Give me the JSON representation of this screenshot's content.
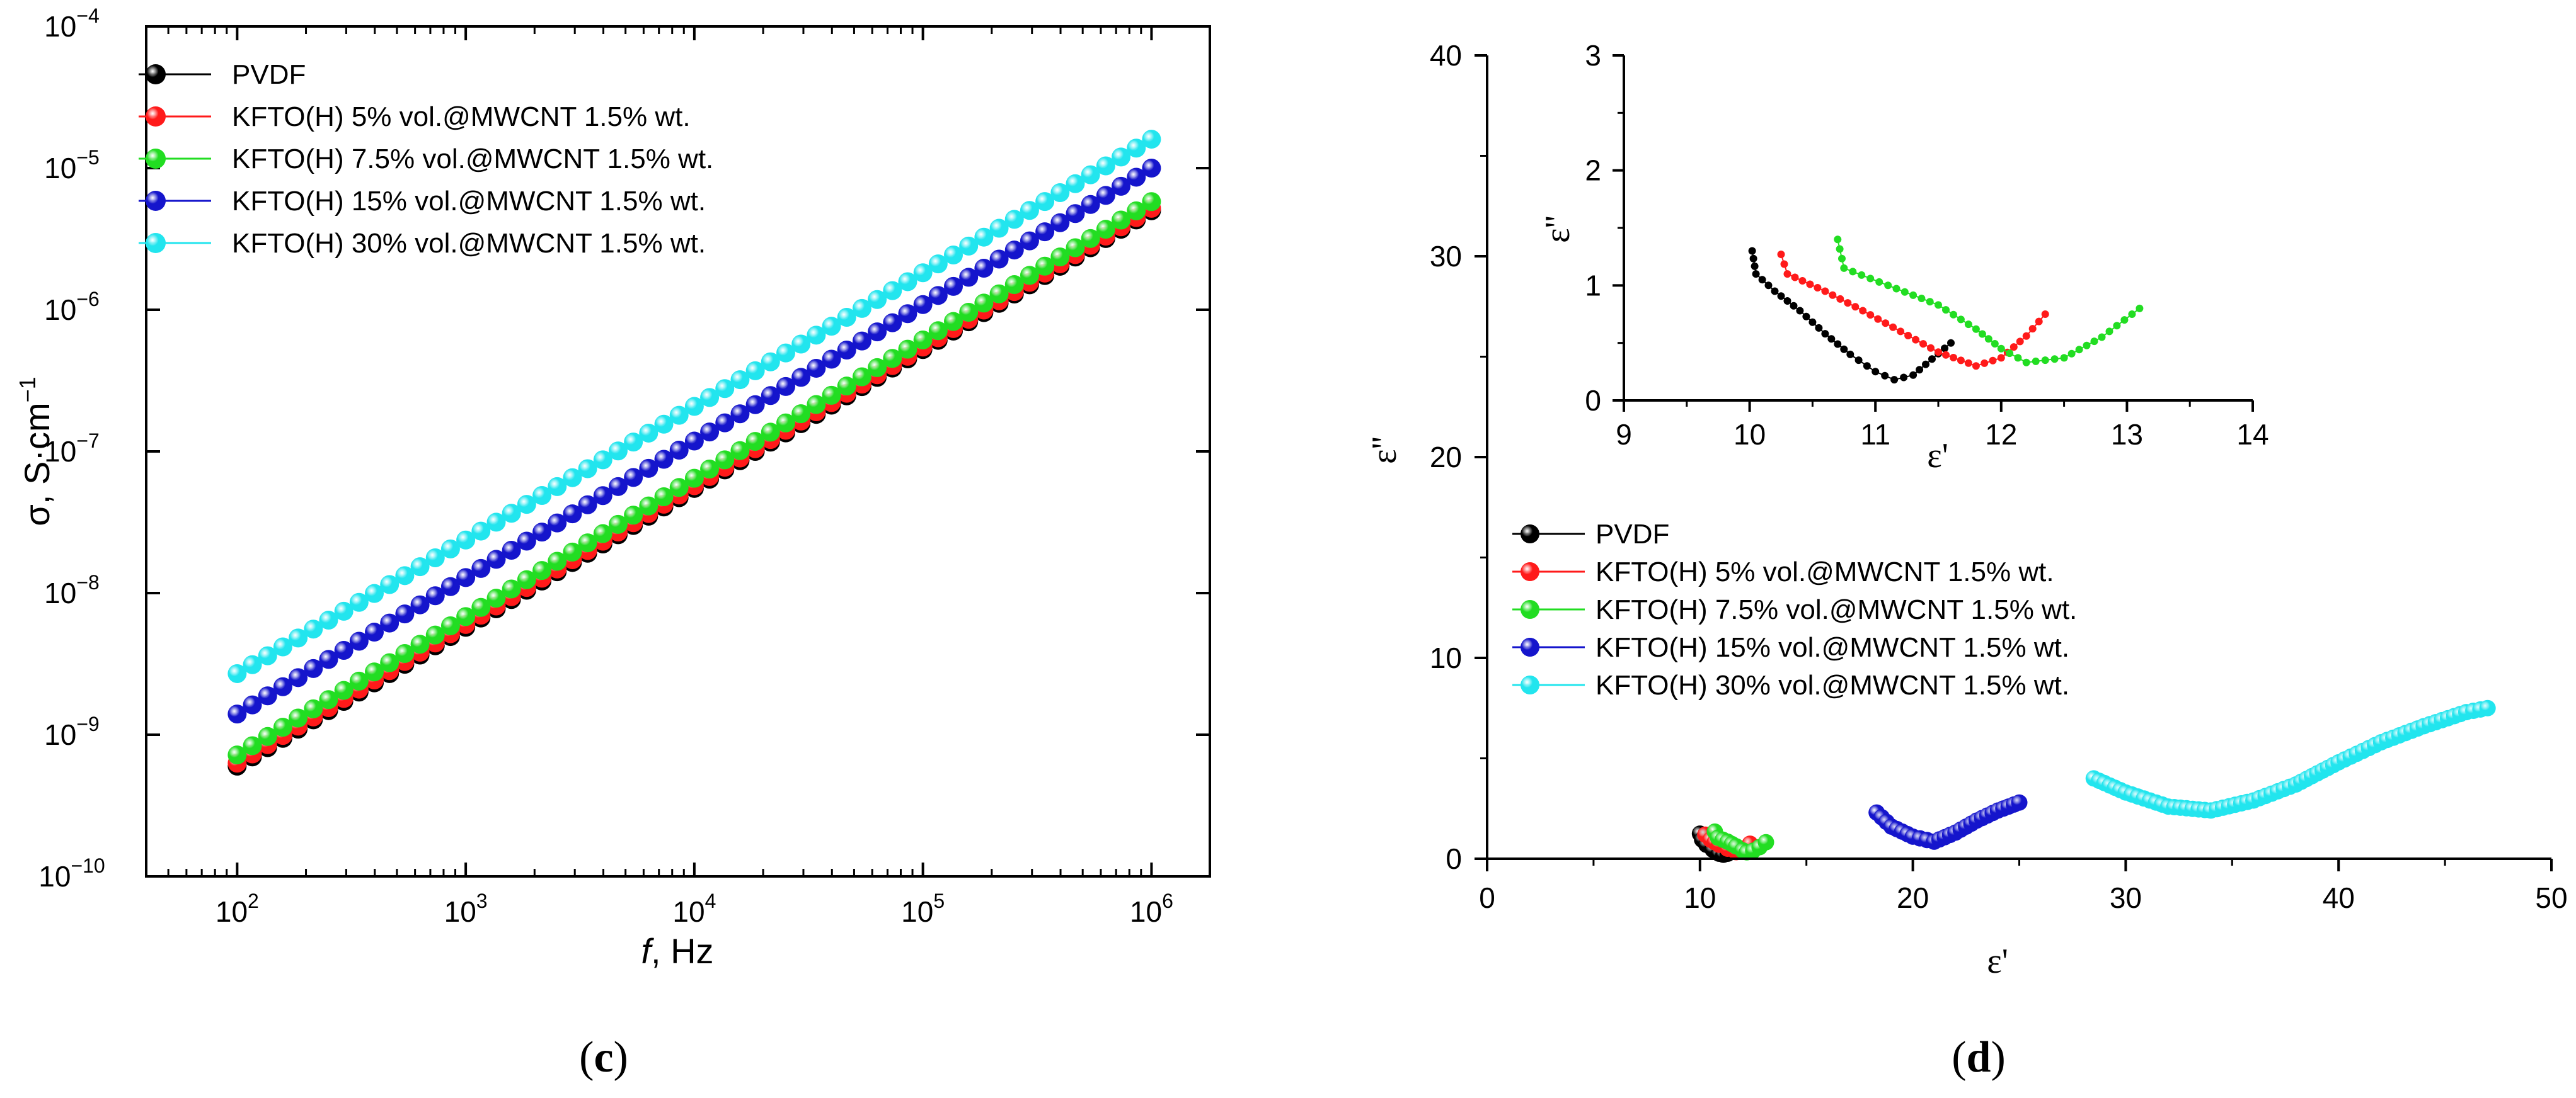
{
  "figure": {
    "panels": [
      {
        "id": "c",
        "label_open": "(",
        "letter": "c",
        "label_close": ")"
      },
      {
        "id": "d",
        "label_open": "(",
        "letter": "d",
        "label_close": ")"
      }
    ]
  },
  "colors": {
    "PVDF": "#000000",
    "KFTO5": "#ff1a1a",
    "KFTO7_5": "#22dd22",
    "KFTO15": "#1515cc",
    "KFTO30": "#22e5ee"
  },
  "chart_data": [
    {
      "id": "c",
      "type": "scatter",
      "xscale": "log",
      "yscale": "log",
      "xlabel_italic": "f",
      "xlabel_rest": ", Hz",
      "ylabel_main": "σ, S·cm",
      "ylabel_exp": "−1",
      "xlim": [
        40,
        1800000
      ],
      "ylim": [
        1e-10,
        0.0001
      ],
      "x_ticks": [
        {
          "value": 100,
          "base": "10",
          "exp": "2"
        },
        {
          "value": 1000,
          "base": "10",
          "exp": "3"
        },
        {
          "value": 10000,
          "base": "10",
          "exp": "4"
        },
        {
          "value": 100000,
          "base": "10",
          "exp": "5"
        },
        {
          "value": 1000000,
          "base": "10",
          "exp": "6"
        }
      ],
      "y_ticks": [
        {
          "value": 1e-10,
          "base": "10",
          "exp": "−10"
        },
        {
          "value": 1e-09,
          "base": "10",
          "exp": "−9"
        },
        {
          "value": 1e-08,
          "base": "10",
          "exp": "−8"
        },
        {
          "value": 1e-07,
          "base": "10",
          "exp": "−7"
        },
        {
          "value": 1e-06,
          "base": "10",
          "exp": "−6"
        },
        {
          "value": 1e-05,
          "base": "10",
          "exp": "−5"
        },
        {
          "value": 0.0001,
          "base": "10",
          "exp": "−4"
        }
      ],
      "legend_position": "top-left",
      "points_per_series": 61,
      "series": [
        {
          "name": "PVDF",
          "color_key": "PVDF",
          "x_start": 100,
          "x_end": 1000000,
          "y_start": 6e-10,
          "y_end": 5e-06
        },
        {
          "name": "KFTO(H) 5% vol.@MWCNT 1.5% wt.",
          "color_key": "KFTO5",
          "x_start": 100,
          "x_end": 1000000,
          "y_start": 6.3e-10,
          "y_end": 5.2e-06
        },
        {
          "name": "KFTO(H) 7.5% vol.@MWCNT 1.5% wt.",
          "color_key": "KFTO7_5",
          "x_start": 100,
          "x_end": 1000000,
          "y_start": 7.2e-10,
          "y_end": 5.8e-06
        },
        {
          "name": "KFTO(H) 15% vol.@MWCNT 1.5% wt.",
          "color_key": "KFTO15",
          "x_start": 100,
          "x_end": 1000000,
          "y_start": 1.4e-09,
          "y_end": 1e-05
        },
        {
          "name": "KFTO(H) 30% vol.@MWCNT 1.5% wt.",
          "color_key": "KFTO30",
          "x_start": 100,
          "x_end": 1000000,
          "y_start": 2.7e-09,
          "y_end": 1.6e-05
        }
      ]
    },
    {
      "id": "d",
      "type": "scatter",
      "xlabel": "ε'",
      "ylabel": "ε''",
      "xlim": [
        0,
        50
      ],
      "ylim": [
        0,
        40
      ],
      "x_ticks": [
        0,
        10,
        20,
        30,
        40,
        50
      ],
      "y_ticks": [
        0,
        10,
        20,
        30,
        40
      ],
      "legend_position": "center-left",
      "series": [
        {
          "name": "PVDF",
          "color_key": "PVDF",
          "points": [
            [
              10.0,
              1.25
            ],
            [
              10.1,
              0.95
            ],
            [
              10.3,
              0.7
            ],
            [
              10.6,
              0.45
            ],
            [
              10.9,
              0.25
            ],
            [
              11.1,
              0.2
            ],
            [
              11.3,
              0.25
            ],
            [
              11.5,
              0.45
            ],
            [
              11.6,
              0.55
            ]
          ]
        },
        {
          "name": "KFTO(H) 5% vol.@MWCNT 1.5% wt.",
          "color_key": "KFTO5",
          "points": [
            [
              10.25,
              1.2
            ],
            [
              10.5,
              0.95
            ],
            [
              10.9,
              0.7
            ],
            [
              11.3,
              0.5
            ],
            [
              11.7,
              0.33
            ],
            [
              12.0,
              0.38
            ],
            [
              12.2,
              0.55
            ],
            [
              12.35,
              0.75
            ]
          ]
        },
        {
          "name": "KFTO(H) 7.5% vol.@MWCNT 1.5% wt.",
          "color_key": "KFTO7_5",
          "points": [
            [
              10.7,
              1.35
            ],
            [
              10.85,
              1.05
            ],
            [
              11.3,
              0.85
            ],
            [
              11.7,
              0.62
            ],
            [
              12.0,
              0.42
            ],
            [
              12.2,
              0.32
            ],
            [
              12.5,
              0.4
            ],
            [
              12.8,
              0.58
            ],
            [
              13.1,
              0.82
            ]
          ]
        },
        {
          "name": "KFTO(H) 15% vol.@MWCNT 1.5% wt.",
          "color_key": "KFTO15",
          "points": [
            [
              18.3,
              2.3
            ],
            [
              19.0,
              1.6
            ],
            [
              20.0,
              1.1
            ],
            [
              21.0,
              0.85
            ],
            [
              22.0,
              1.3
            ],
            [
              23.0,
              1.9
            ],
            [
              24.0,
              2.4
            ],
            [
              25.0,
              2.8
            ]
          ]
        },
        {
          "name": "KFTO(H) 30% vol.@MWCNT 1.5% wt.",
          "color_key": "KFTO30",
          "points": [
            [
              28.5,
              4.0
            ],
            [
              30.0,
              3.3
            ],
            [
              32.0,
              2.6
            ],
            [
              34.0,
              2.4
            ],
            [
              36.0,
              2.9
            ],
            [
              38.0,
              3.7
            ],
            [
              40.0,
              4.8
            ],
            [
              42.0,
              5.8
            ],
            [
              44.0,
              6.6
            ],
            [
              46.0,
              7.3
            ],
            [
              47.0,
              7.5
            ]
          ]
        }
      ],
      "inset": {
        "xlabel": "ε'",
        "ylabel": "ε''",
        "xlim": [
          9,
          14
        ],
        "ylim": [
          0,
          3
        ],
        "x_ticks": [
          9,
          10,
          11,
          12,
          13,
          14
        ],
        "y_ticks": [
          0,
          1,
          2,
          3
        ],
        "series": [
          {
            "name": "PVDF",
            "color_key": "PVDF",
            "points": [
              [
                10.02,
                1.3
              ],
              [
                10.05,
                1.1
              ],
              [
                10.2,
                0.95
              ],
              [
                10.4,
                0.78
              ],
              [
                10.6,
                0.58
              ],
              [
                10.8,
                0.4
              ],
              [
                11.0,
                0.25
              ],
              [
                11.15,
                0.18
              ],
              [
                11.3,
                0.22
              ],
              [
                11.45,
                0.36
              ],
              [
                11.6,
                0.5
              ]
            ]
          },
          {
            "name": "KFTO(H) 5% vol.@MWCNT 1.5% wt.",
            "color_key": "KFTO5",
            "points": [
              [
                10.25,
                1.27
              ],
              [
                10.3,
                1.1
              ],
              [
                10.6,
                0.95
              ],
              [
                10.9,
                0.78
              ],
              [
                11.2,
                0.6
              ],
              [
                11.5,
                0.42
              ],
              [
                11.8,
                0.3
              ],
              [
                12.0,
                0.37
              ],
              [
                12.2,
                0.56
              ],
              [
                12.35,
                0.75
              ]
            ]
          },
          {
            "name": "KFTO(H) 7.5% vol.@MWCNT 1.5% wt.",
            "color_key": "KFTO7_5",
            "points": [
              [
                10.7,
                1.4
              ],
              [
                10.75,
                1.15
              ],
              [
                11.1,
                1.0
              ],
              [
                11.5,
                0.83
              ],
              [
                11.8,
                0.62
              ],
              [
                12.0,
                0.45
              ],
              [
                12.2,
                0.33
              ],
              [
                12.5,
                0.37
              ],
              [
                12.8,
                0.55
              ],
              [
                13.1,
                0.8
              ]
            ]
          }
        ]
      }
    }
  ]
}
